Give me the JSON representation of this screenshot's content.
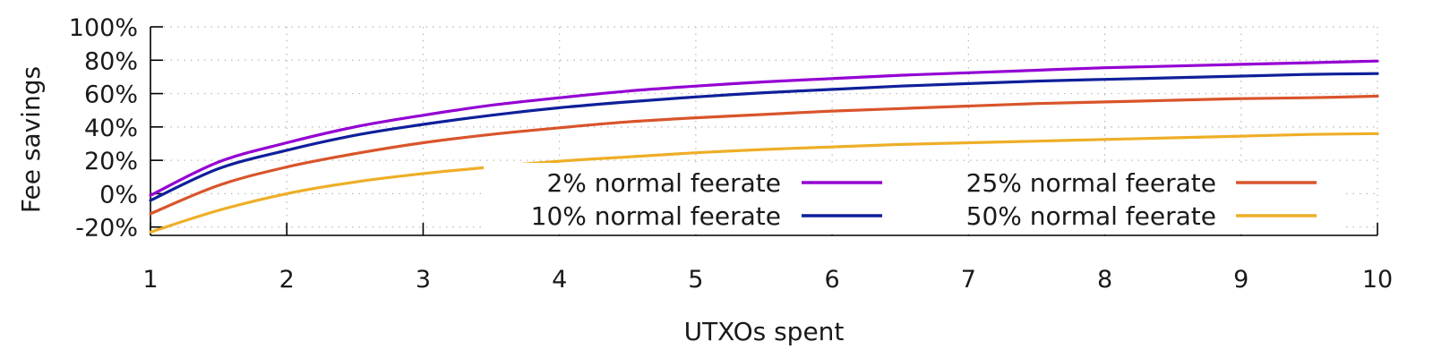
{
  "chart_data": {
    "type": "line",
    "title": "",
    "xlabel": "UTXOs spent",
    "ylabel": "Fee savings",
    "xlim": [
      1,
      10
    ],
    "ylim": [
      -25,
      100
    ],
    "x_ticks": [
      1,
      2,
      3,
      4,
      5,
      6,
      7,
      8,
      9,
      10
    ],
    "x_tick_labels": [
      "1",
      "2",
      "3",
      "4",
      "5",
      "6",
      "7",
      "8",
      "9",
      "10"
    ],
    "y_ticks": [
      -20,
      0,
      20,
      40,
      60,
      80,
      100
    ],
    "y_tick_labels": [
      "-20%",
      "0%",
      "20%",
      "40%",
      "60%",
      "80%",
      "100%"
    ],
    "grid": true,
    "legend_placement": "bottom-right, two columns",
    "x": [
      1,
      1.5,
      2,
      2.5,
      3,
      3.5,
      4,
      4.5,
      5,
      5.5,
      6,
      6.5,
      7,
      7.5,
      8,
      8.5,
      9,
      9.5,
      10
    ],
    "series": [
      {
        "name": "2% normal feerate",
        "color": "#9400d3",
        "values": [
          -1,
          19,
          30.5,
          40,
          47,
          53,
          57.5,
          61.5,
          64.5,
          67,
          69,
          71,
          72.5,
          74,
          75.5,
          76.5,
          77.5,
          78.5,
          79.5
        ]
      },
      {
        "name": "10% normal feerate",
        "color": "#0f1f9a",
        "values": [
          -4,
          15,
          26,
          35,
          41.5,
          47,
          51.5,
          55,
          58,
          60.5,
          62.5,
          64.5,
          66,
          67.5,
          68.5,
          69.5,
          70.5,
          71.5,
          72
        ]
      },
      {
        "name": "25% normal feerate",
        "color": "#d9542b",
        "values": [
          -12,
          5,
          16,
          24,
          30.5,
          35.5,
          39.5,
          43,
          45.5,
          47.5,
          49.5,
          51,
          52.5,
          54,
          55,
          56,
          57,
          57.5,
          58.5
        ]
      },
      {
        "name": "50% normal feerate",
        "color": "#eeae27",
        "values": [
          -23,
          -10,
          0,
          7,
          12,
          16,
          19.5,
          22,
          24.5,
          26.5,
          28,
          29.5,
          30.5,
          31.5,
          32.5,
          33.5,
          34.5,
          35.5,
          36
        ]
      }
    ]
  }
}
